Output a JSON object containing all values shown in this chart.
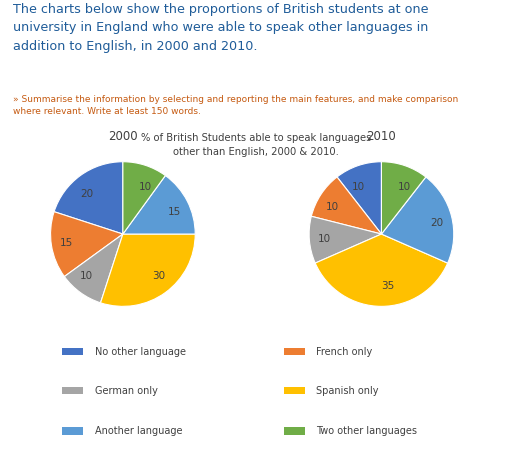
{
  "title_text": "The charts below show the proportions of British students at one\nuniversity in England who were able to speak other languages in\naddition to English, in 2000 and 2010.",
  "subtitle_text": "» Summarise the information by selecting and reporting the main features, and make comparison\nwhere relevant. Write at least 150 words.",
  "chart_title": "% of British Students able to speak languages\nother than English, 2000 & 2010.",
  "year_2000": "2000",
  "year_2010": "2010",
  "categories": [
    "No other language",
    "French only",
    "German only",
    "Spanish only",
    "Another language",
    "Two other languages"
  ],
  "colors": [
    "#4472C4",
    "#ED7D31",
    "#A5A5A5",
    "#FFC000",
    "#5B9BD5",
    "#70AD47"
  ],
  "values_2000": [
    20,
    15,
    10,
    30,
    15,
    10
  ],
  "values_2010": [
    10,
    10,
    10,
    35,
    20,
    10
  ],
  "labels_2000": [
    "20",
    "15",
    "10",
    "30",
    "15",
    "10"
  ],
  "labels_2010": [
    "10",
    "10",
    "10",
    "35",
    "20",
    "10"
  ],
  "bg_color": "#FFFFFF",
  "title_color": "#1F5C99",
  "subtitle_color": "#C55A11",
  "chart_title_color": "#404040",
  "label_color": "#404040"
}
